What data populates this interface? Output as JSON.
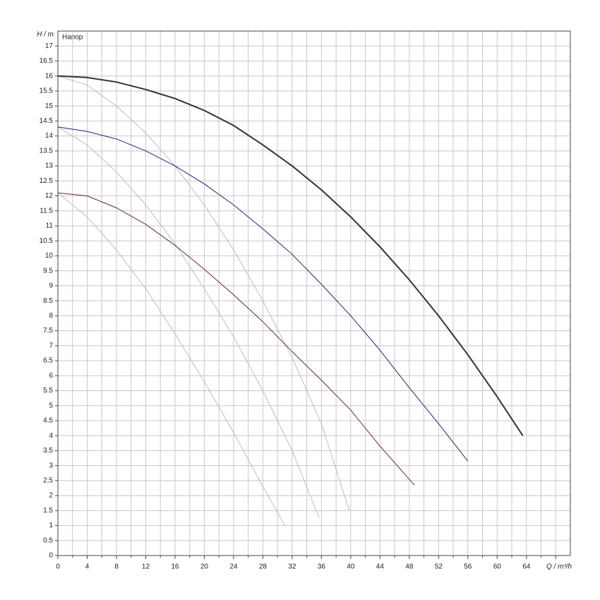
{
  "chart_data": {
    "type": "line",
    "y_label": "H / m",
    "x_label": "Q / m³/h",
    "annotation": "Напор",
    "xlim": [
      0,
      70
    ],
    "ylim": [
      0,
      17.5
    ],
    "xticks": [
      0,
      4,
      8,
      12,
      16,
      20,
      24,
      28,
      32,
      36,
      40,
      44,
      48,
      52,
      56,
      60,
      64
    ],
    "yticks": [
      0,
      0.5,
      1,
      1.5,
      2,
      2.5,
      3,
      3.5,
      4,
      4.5,
      5,
      5.5,
      6,
      6.5,
      7,
      7.5,
      8,
      8.5,
      9,
      9.5,
      10,
      10.5,
      11,
      11.5,
      12,
      12.5,
      13,
      13.5,
      14,
      14.5,
      15,
      15.5,
      16,
      16.5,
      17
    ],
    "grid": true,
    "series": [
      {
        "color": "#bdbdbd",
        "width": 1,
        "x": [
          0,
          4,
          8,
          12,
          16,
          20,
          24,
          28,
          32,
          36,
          39.8
        ],
        "values": [
          16,
          15.7,
          15.0,
          14.1,
          13.0,
          11.7,
          10.2,
          8.5,
          6.6,
          4.4,
          1.5
        ]
      },
      {
        "color": "#bdbdbd",
        "width": 1,
        "x": [
          0,
          4,
          8,
          12,
          16,
          20,
          24,
          28,
          32,
          35.7
        ],
        "values": [
          14.3,
          13.7,
          12.8,
          11.7,
          10.4,
          8.9,
          7.3,
          5.5,
          3.5,
          1.25
        ]
      },
      {
        "color": "#bdbdbd",
        "width": 1,
        "x": [
          0,
          4,
          8,
          12,
          16,
          20,
          24,
          28,
          31
        ],
        "values": [
          12.1,
          11.3,
          10.2,
          8.9,
          7.4,
          5.8,
          4.1,
          2.3,
          1.0
        ]
      },
      {
        "color": "#333333",
        "width": 2,
        "x": [
          0,
          4,
          8,
          12,
          16,
          20,
          24,
          28,
          32,
          36,
          40,
          44,
          48,
          52,
          56,
          60,
          63.5
        ],
        "values": [
          16,
          15.95,
          15.8,
          15.55,
          15.25,
          14.85,
          14.35,
          13.7,
          13.0,
          12.2,
          11.3,
          10.3,
          9.2,
          8.0,
          6.7,
          5.3,
          4.0
        ]
      },
      {
        "color": "#23236e",
        "width": 1,
        "x": [
          0,
          4,
          8,
          12,
          16,
          20,
          24,
          28,
          32,
          36,
          40,
          44,
          48,
          52,
          56
        ],
        "values": [
          14.3,
          14.15,
          13.9,
          13.5,
          13.0,
          12.4,
          11.7,
          10.9,
          10.05,
          9.05,
          8.0,
          6.85,
          5.6,
          4.4,
          3.15
        ]
      },
      {
        "color": "#6a1f5e",
        "width": 1,
        "x": [
          0,
          4,
          8,
          12,
          16,
          20,
          24,
          28,
          32,
          36,
          40,
          44,
          48.7
        ],
        "values": [
          12.1,
          12.0,
          11.6,
          11.05,
          10.35,
          9.55,
          8.7,
          7.8,
          6.8,
          5.85,
          4.85,
          3.65,
          2.35
        ]
      }
    ]
  }
}
